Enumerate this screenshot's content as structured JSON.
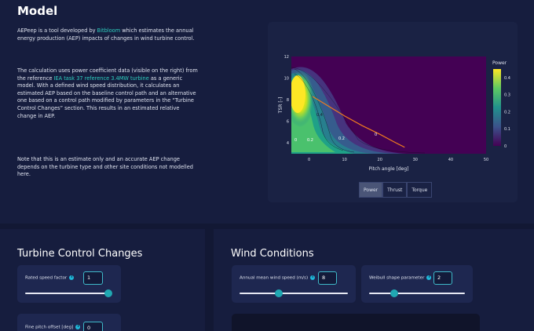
{
  "model": {
    "title": "Model",
    "para1": {
      "t1": "AEPeep is a tool developed by ",
      "link": "Bitbloom",
      "t2": " which estimates the annual energy production (AEP) impacts of changes in wind turbine control."
    },
    "para2": {
      "t1": "The calculation uses power coefficient data (visible on the right) from the reference ",
      "link": "IEA task 37 reference 3.4MW turbine",
      "t2": " as a generic model. With a defined wind speed distribution, it calculates an estimated AEP based on the baseline control path and an alternative one based on a control path modified by parameters in the “Turbine Control Changes” section. This results in an estimated relative change in AEP."
    },
    "para3": "Note that this is an estimate only and an accurate AEP change depends on the turbine type and other site conditions not modelled here."
  },
  "chart_data": {
    "type": "heatmap",
    "xlabel": "Pitch angle [deg]",
    "ylabel": "TSR [-]",
    "x_ticks": [
      0,
      10,
      20,
      30,
      40,
      50
    ],
    "y_ticks": [
      4,
      6,
      8,
      10,
      12
    ],
    "xlim": [
      -5,
      50
    ],
    "ylim": [
      3,
      12
    ],
    "legend_title": "Power",
    "colorbar_ticks": [
      0,
      0.1,
      0.2,
      0.3,
      0.4
    ],
    "contour_labels": [
      "0.4",
      "0.2",
      "0.2",
      "0",
      "0"
    ],
    "control_path": {
      "x": [
        1,
        3,
        6,
        10,
        15,
        20,
        24,
        27
      ],
      "y": [
        8.3,
        7.9,
        7.3,
        6.5,
        5.6,
        4.8,
        4.1,
        3.6
      ]
    },
    "colorscale": [
      "#440154",
      "#3b528b",
      "#21918c",
      "#5ec962",
      "#fde725"
    ]
  },
  "plot_tabs": [
    {
      "label": "Power",
      "active": true
    },
    {
      "label": "Thrust",
      "active": false
    },
    {
      "label": "Torque",
      "active": false
    }
  ],
  "turbine": {
    "title": "Turbine Control Changes",
    "rated_speed": {
      "label": "Rated speed factor",
      "value": "1",
      "slider": 1.0
    },
    "fine_pitch": {
      "label": "Fine pitch offset [deg]",
      "value": "0"
    }
  },
  "wind": {
    "title": "Wind Conditions",
    "mean_speed": {
      "label": "Annual mean wind speed (m/s)",
      "value": "8",
      "slider": 0.36
    },
    "weibull": {
      "label": "Weibull shape parameter",
      "value": "2",
      "slider": 0.26
    }
  },
  "icons": {
    "info": "info-icon"
  }
}
